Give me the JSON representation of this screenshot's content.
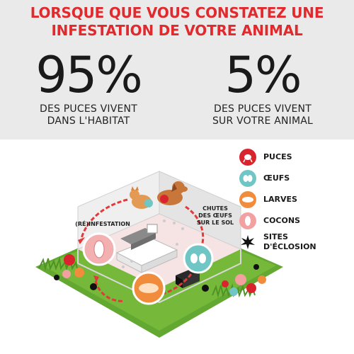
{
  "header": {
    "line1": "LORSQUE QUE VOUS CONSTATEZ UNE",
    "line2": "INFESTATION DE VOTRE ANIMAL"
  },
  "stats": [
    {
      "value": "95%",
      "line1": "DES PUCES VIVENT",
      "line2": "DANS L'HABITAT"
    },
    {
      "value": "5%",
      "line1": "DES PUCES VIVENT",
      "line2": "SUR VOTRE ANIMAL"
    }
  ],
  "legend": [
    {
      "label": "PUCES",
      "icon": "flea-icon",
      "color": "#d9232d"
    },
    {
      "label": "ŒUFS",
      "icon": "egg-icon",
      "color": "#6fc6c4"
    },
    {
      "label": "LARVES",
      "icon": "larva-icon",
      "color": "#f08c3c"
    },
    {
      "label": "COCONS",
      "icon": "cocoon-icon",
      "color": "#f2a0a0"
    },
    {
      "label1": "SITES",
      "label2": "D'ÉCLOSION",
      "icon": "hatching-site-icon",
      "color": "#111111"
    }
  ],
  "diagram": {
    "reinfestation_label": "(RÉ)INFESTATION",
    "falling_eggs_label1": "CHUTES",
    "falling_eggs_label2": "DES ŒUFS",
    "falling_eggs_label3": "SUR LE SOL"
  },
  "colors": {
    "headline_red": "#e02a2e",
    "top_band": "#eaeaea",
    "grass": "#5aa02c",
    "cycle_arrow": "#e03a3a"
  }
}
